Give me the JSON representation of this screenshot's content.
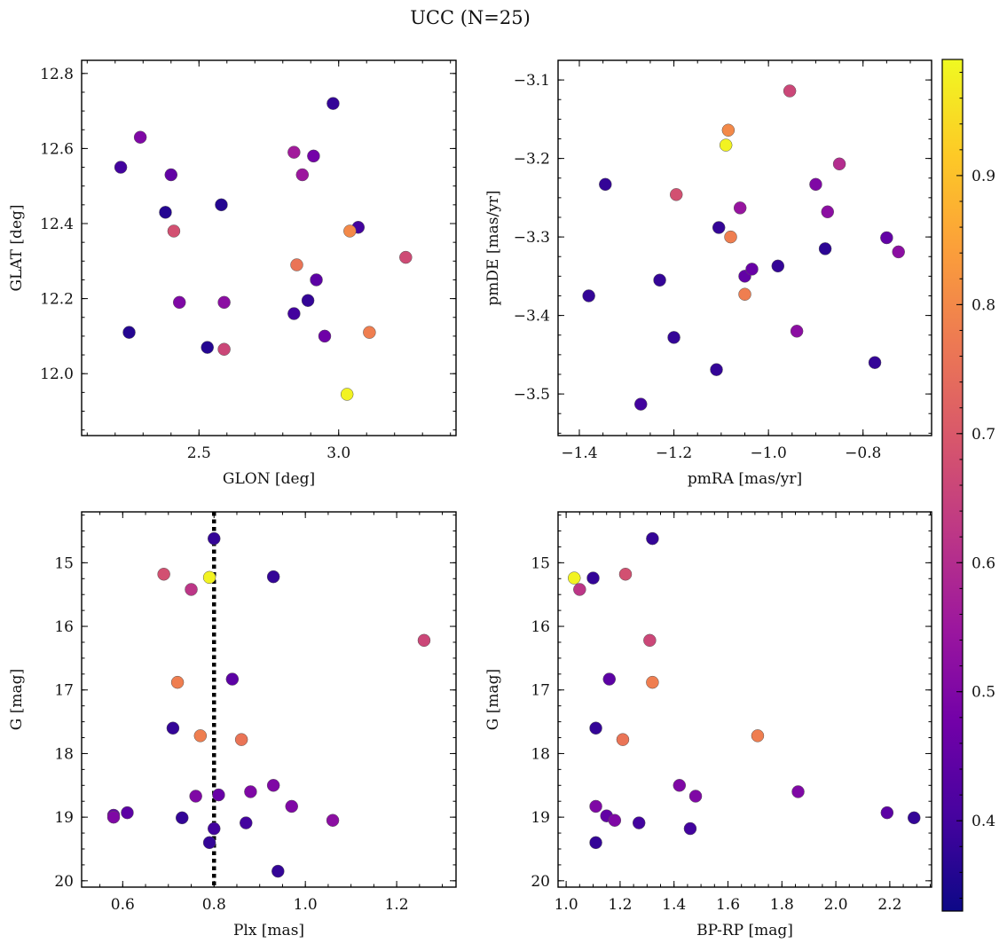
{
  "figure": {
    "suptitle": "UCC (N=25)"
  },
  "colorbar": {
    "range": [
      0.33,
      0.99
    ],
    "ticks": [
      0.4,
      0.5,
      0.6,
      0.7,
      0.8,
      0.9
    ],
    "tick_labels": [
      "0.4",
      "0.5",
      "0.6",
      "0.7",
      "0.8",
      "0.9"
    ],
    "colormap": "plasma"
  },
  "colormap_stops": [
    "#0d0887",
    "#46039f",
    "#7201a8",
    "#9c179e",
    "#bd3786",
    "#d8576b",
    "#ed7953",
    "#fb9f3a",
    "#fdca26",
    "#f0f921"
  ],
  "chart_data": [
    {
      "type": "scatter",
      "title": "",
      "xlabel": "GLON [deg]",
      "ylabel": "GLAT [deg]",
      "xlim": [
        2.08,
        3.42
      ],
      "ylim": [
        11.835,
        12.835
      ],
      "xticks": [
        2.5,
        3.0
      ],
      "xtick_labels": [
        "2.5",
        "3.0"
      ],
      "yticks": [
        12.0,
        12.2,
        12.4,
        12.6,
        12.8
      ],
      "ytick_labels": [
        "12.0",
        "12.2",
        "12.4",
        "12.6",
        "12.8"
      ],
      "x_minor_step": 0.1,
      "y_minor_step": 0.05,
      "invert_y": false,
      "points": [
        {
          "x": 2.29,
          "y": 12.63,
          "c": 0.5
        },
        {
          "x": 2.22,
          "y": 12.55,
          "c": 0.4
        },
        {
          "x": 2.4,
          "y": 12.53,
          "c": 0.45
        },
        {
          "x": 2.38,
          "y": 12.43,
          "c": 0.36
        },
        {
          "x": 2.58,
          "y": 12.45,
          "c": 0.36
        },
        {
          "x": 2.41,
          "y": 12.38,
          "c": 0.68
        },
        {
          "x": 2.43,
          "y": 12.19,
          "c": 0.5
        },
        {
          "x": 2.59,
          "y": 12.19,
          "c": 0.52
        },
        {
          "x": 2.25,
          "y": 12.11,
          "c": 0.36
        },
        {
          "x": 2.53,
          "y": 12.07,
          "c": 0.36
        },
        {
          "x": 2.59,
          "y": 12.065,
          "c": 0.66
        },
        {
          "x": 2.98,
          "y": 12.72,
          "c": 0.38
        },
        {
          "x": 2.84,
          "y": 12.59,
          "c": 0.56
        },
        {
          "x": 2.91,
          "y": 12.58,
          "c": 0.48
        },
        {
          "x": 2.87,
          "y": 12.53,
          "c": 0.55
        },
        {
          "x": 3.07,
          "y": 12.39,
          "c": 0.4
        },
        {
          "x": 3.04,
          "y": 12.38,
          "c": 0.8
        },
        {
          "x": 2.85,
          "y": 12.29,
          "c": 0.76
        },
        {
          "x": 3.24,
          "y": 12.31,
          "c": 0.67
        },
        {
          "x": 2.92,
          "y": 12.25,
          "c": 0.44
        },
        {
          "x": 2.89,
          "y": 12.195,
          "c": 0.38
        },
        {
          "x": 2.84,
          "y": 12.16,
          "c": 0.4
        },
        {
          "x": 2.95,
          "y": 12.1,
          "c": 0.47
        },
        {
          "x": 3.11,
          "y": 12.11,
          "c": 0.78
        },
        {
          "x": 3.03,
          "y": 11.945,
          "c": 0.98
        }
      ]
    },
    {
      "type": "scatter",
      "title": "",
      "xlabel": "pmRA [mas/yr]",
      "ylabel": "pmDE [mas/yr]",
      "xlim": [
        -1.445,
        -0.655
      ],
      "ylim": [
        -3.553,
        -3.075
      ],
      "xticks": [
        -1.4,
        -1.2,
        -1.0,
        -0.8
      ],
      "xtick_labels": [
        "−1.4",
        "−1.2",
        "−1.0",
        "−0.8"
      ],
      "yticks": [
        -3.5,
        -3.4,
        -3.3,
        -3.2,
        -3.1
      ],
      "ytick_labels": [
        "−3.5",
        "−3.4",
        "−3.3",
        "−3.2",
        "−3.1"
      ],
      "x_minor_step": 0.05,
      "y_minor_step": 0.025,
      "invert_y": false,
      "points": [
        {
          "x": -0.955,
          "y": -3.114,
          "c": 0.66
        },
        {
          "x": -1.085,
          "y": -3.164,
          "c": 0.8
        },
        {
          "x": -1.09,
          "y": -3.183,
          "c": 0.98
        },
        {
          "x": -0.85,
          "y": -3.207,
          "c": 0.6
        },
        {
          "x": -1.345,
          "y": -3.233,
          "c": 0.38
        },
        {
          "x": -0.9,
          "y": -3.233,
          "c": 0.5
        },
        {
          "x": -1.195,
          "y": -3.246,
          "c": 0.68
        },
        {
          "x": -1.06,
          "y": -3.263,
          "c": 0.54
        },
        {
          "x": -0.875,
          "y": -3.268,
          "c": 0.52
        },
        {
          "x": -1.105,
          "y": -3.288,
          "c": 0.38
        },
        {
          "x": -1.08,
          "y": -3.3,
          "c": 0.78
        },
        {
          "x": -0.75,
          "y": -3.301,
          "c": 0.45
        },
        {
          "x": -0.88,
          "y": -3.315,
          "c": 0.37
        },
        {
          "x": -0.725,
          "y": -3.319,
          "c": 0.52
        },
        {
          "x": -0.98,
          "y": -3.337,
          "c": 0.38
        },
        {
          "x": -1.035,
          "y": -3.341,
          "c": 0.46
        },
        {
          "x": -1.05,
          "y": -3.35,
          "c": 0.45
        },
        {
          "x": -1.23,
          "y": -3.355,
          "c": 0.38
        },
        {
          "x": -1.05,
          "y": -3.373,
          "c": 0.78
        },
        {
          "x": -1.38,
          "y": -3.375,
          "c": 0.38
        },
        {
          "x": -0.94,
          "y": -3.42,
          "c": 0.52
        },
        {
          "x": -1.2,
          "y": -3.428,
          "c": 0.38
        },
        {
          "x": -0.775,
          "y": -3.46,
          "c": 0.38
        },
        {
          "x": -1.11,
          "y": -3.469,
          "c": 0.38
        },
        {
          "x": -1.27,
          "y": -3.513,
          "c": 0.4
        }
      ]
    },
    {
      "type": "scatter",
      "title": "",
      "xlabel": "Plx [mas]",
      "ylabel": "G [mag]",
      "xlim": [
        0.51,
        1.33
      ],
      "ylim": [
        20.1,
        14.2
      ],
      "xticks": [
        0.6,
        0.8,
        1.0,
        1.2
      ],
      "xtick_labels": [
        "0.6",
        "0.8",
        "1.0",
        "1.2"
      ],
      "yticks": [
        15,
        16,
        17,
        18,
        19,
        20
      ],
      "ytick_labels": [
        "15",
        "16",
        "17",
        "18",
        "19",
        "20"
      ],
      "x_minor_step": 0.05,
      "y_minor_step": 0.25,
      "invert_y": true,
      "vline": {
        "x": 0.8,
        "style": "dotted",
        "color": "#000000"
      },
      "points": [
        {
          "x": 0.8,
          "y": 14.62,
          "c": 0.38
        },
        {
          "x": 0.69,
          "y": 15.18,
          "c": 0.68
        },
        {
          "x": 0.79,
          "y": 15.23,
          "c": 0.98
        },
        {
          "x": 0.93,
          "y": 15.22,
          "c": 0.38
        },
        {
          "x": 0.75,
          "y": 15.42,
          "c": 0.62
        },
        {
          "x": 1.26,
          "y": 16.22,
          "c": 0.66
        },
        {
          "x": 0.72,
          "y": 16.88,
          "c": 0.78
        },
        {
          "x": 0.84,
          "y": 16.83,
          "c": 0.44
        },
        {
          "x": 0.71,
          "y": 17.6,
          "c": 0.38
        },
        {
          "x": 0.77,
          "y": 17.72,
          "c": 0.78
        },
        {
          "x": 0.86,
          "y": 17.78,
          "c": 0.76
        },
        {
          "x": 0.93,
          "y": 18.5,
          "c": 0.5
        },
        {
          "x": 0.88,
          "y": 18.6,
          "c": 0.5
        },
        {
          "x": 0.76,
          "y": 18.67,
          "c": 0.5
        },
        {
          "x": 0.81,
          "y": 18.65,
          "c": 0.46
        },
        {
          "x": 0.97,
          "y": 18.83,
          "c": 0.5
        },
        {
          "x": 0.58,
          "y": 18.97,
          "c": 0.45
        },
        {
          "x": 0.61,
          "y": 18.93,
          "c": 0.44
        },
        {
          "x": 0.58,
          "y": 19.0,
          "c": 0.5
        },
        {
          "x": 0.73,
          "y": 19.01,
          "c": 0.38
        },
        {
          "x": 1.06,
          "y": 19.05,
          "c": 0.52
        },
        {
          "x": 0.87,
          "y": 19.09,
          "c": 0.4
        },
        {
          "x": 0.8,
          "y": 19.18,
          "c": 0.4
        },
        {
          "x": 0.79,
          "y": 19.4,
          "c": 0.38
        },
        {
          "x": 0.94,
          "y": 19.85,
          "c": 0.38
        }
      ]
    },
    {
      "type": "scatter",
      "title": "",
      "xlabel": "BP-RP [mag]",
      "ylabel": "G [mag]",
      "xlim": [
        0.97,
        2.355
      ],
      "ylim": [
        20.1,
        14.2
      ],
      "xticks": [
        1.0,
        1.2,
        1.4,
        1.6,
        1.8,
        2.0,
        2.2
      ],
      "xtick_labels": [
        "1.0",
        "1.2",
        "1.4",
        "1.6",
        "1.8",
        "2.0",
        "2.2"
      ],
      "yticks": [
        15,
        16,
        17,
        18,
        19,
        20
      ],
      "ytick_labels": [
        "15",
        "16",
        "17",
        "18",
        "19",
        "20"
      ],
      "x_minor_step": 0.05,
      "y_minor_step": 0.25,
      "invert_y": true,
      "points": [
        {
          "x": 1.32,
          "y": 14.62,
          "c": 0.38
        },
        {
          "x": 1.03,
          "y": 15.24,
          "c": 0.98
        },
        {
          "x": 1.1,
          "y": 15.24,
          "c": 0.38
        },
        {
          "x": 1.22,
          "y": 15.18,
          "c": 0.68
        },
        {
          "x": 1.05,
          "y": 15.42,
          "c": 0.62
        },
        {
          "x": 1.31,
          "y": 16.22,
          "c": 0.66
        },
        {
          "x": 1.16,
          "y": 16.83,
          "c": 0.44
        },
        {
          "x": 1.32,
          "y": 16.88,
          "c": 0.78
        },
        {
          "x": 1.11,
          "y": 17.6,
          "c": 0.38
        },
        {
          "x": 1.71,
          "y": 17.72,
          "c": 0.78
        },
        {
          "x": 1.21,
          "y": 17.78,
          "c": 0.76
        },
        {
          "x": 1.42,
          "y": 18.5,
          "c": 0.5
        },
        {
          "x": 1.86,
          "y": 18.6,
          "c": 0.5
        },
        {
          "x": 1.48,
          "y": 18.67,
          "c": 0.5
        },
        {
          "x": 1.11,
          "y": 18.83,
          "c": 0.5
        },
        {
          "x": 2.19,
          "y": 18.93,
          "c": 0.44
        },
        {
          "x": 1.15,
          "y": 18.98,
          "c": 0.45
        },
        {
          "x": 1.18,
          "y": 19.05,
          "c": 0.5
        },
        {
          "x": 1.27,
          "y": 19.09,
          "c": 0.4
        },
        {
          "x": 2.29,
          "y": 19.01,
          "c": 0.38
        },
        {
          "x": 1.46,
          "y": 19.18,
          "c": 0.4
        },
        {
          "x": 1.11,
          "y": 19.4,
          "c": 0.38
        }
      ]
    }
  ]
}
